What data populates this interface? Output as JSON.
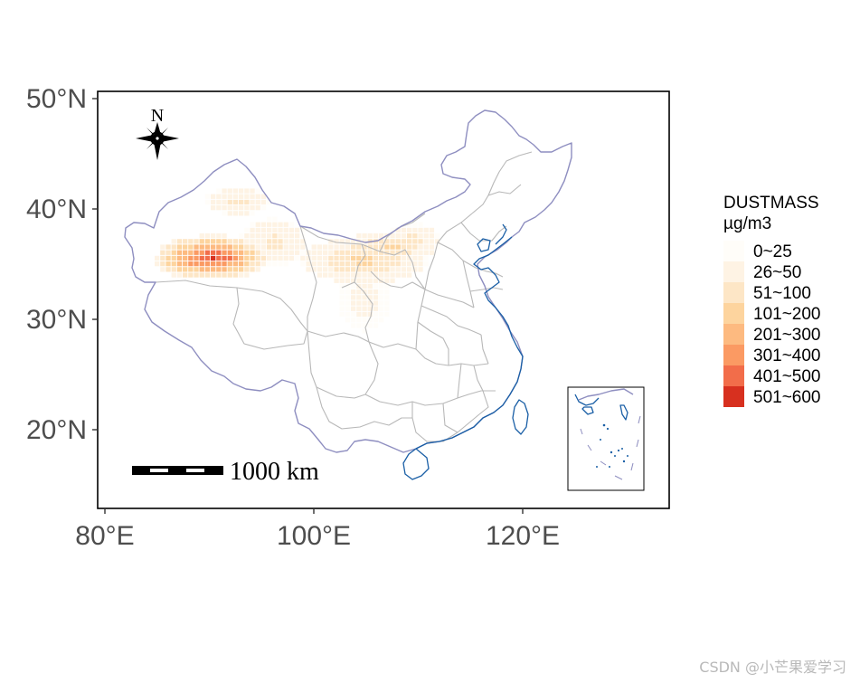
{
  "map": {
    "y_axis": {
      "ticks": [
        {
          "value": 20,
          "label": "20°N"
        },
        {
          "value": 30,
          "label": "30°N"
        },
        {
          "value": 40,
          "label": "40°N"
        },
        {
          "value": 50,
          "label": "50°N"
        }
      ]
    },
    "x_axis": {
      "ticks": [
        {
          "value": 80,
          "label": "80°E"
        },
        {
          "value": 100,
          "label": "100°E"
        },
        {
          "value": 120,
          "label": "120°E"
        }
      ]
    },
    "north_arrow": {
      "label": "N",
      "icon": "compass-rose-icon"
    },
    "scale_bar": {
      "label": "1000 km"
    },
    "inset": {
      "description_icon": "south-china-sea-inset-icon"
    }
  },
  "legend": {
    "title": "DUSTMASS",
    "unit": "µg/m3",
    "classes": [
      {
        "label": "0~25",
        "color": "#fffdf9"
      },
      {
        "label": "26~50",
        "color": "#fef3e4"
      },
      {
        "label": "51~100",
        "color": "#fde6c6"
      },
      {
        "label": "101~200",
        "color": "#fdd49e"
      },
      {
        "label": "201~300",
        "color": "#fdba80"
      },
      {
        "label": "301~400",
        "color": "#fb9a63"
      },
      {
        "label": "401~500",
        "color": "#f26d4a"
      },
      {
        "label": "501~600",
        "color": "#d7301f"
      }
    ]
  },
  "watermark": "CSDN @小芒果爱学习",
  "colors": {
    "national_boundary": "#8e8ec0",
    "province_boundary": "#b8b8b8",
    "coastline": "#1a5fa6",
    "panel_border": "#000000"
  }
}
